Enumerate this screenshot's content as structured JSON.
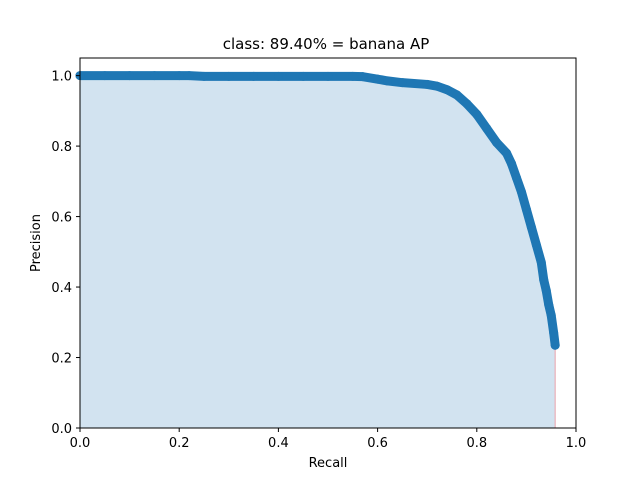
{
  "chart_data": {
    "type": "line",
    "title": "class: 89.40% = banana AP",
    "xlabel": "Recall",
    "ylabel": "Precision",
    "xlim": [
      0.0,
      1.0
    ],
    "ylim": [
      0.0,
      1.05
    ],
    "xticks": [
      "0.0",
      "0.2",
      "0.4",
      "0.6",
      "0.8",
      "1.0"
    ],
    "yticks": [
      "0.0",
      "0.2",
      "0.4",
      "0.6",
      "0.8",
      "1.0"
    ],
    "grid": false,
    "series": [
      {
        "color": "#1f77b4",
        "marker": "circle",
        "fill_under": true,
        "fill_color": "#d2e3f0",
        "x": [
          0.0,
          0.05,
          0.1,
          0.15,
          0.2,
          0.22,
          0.25,
          0.3,
          0.35,
          0.4,
          0.45,
          0.5,
          0.55,
          0.57,
          0.6,
          0.62,
          0.65,
          0.7,
          0.72,
          0.74,
          0.76,
          0.78,
          0.8,
          0.82,
          0.84,
          0.86,
          0.87,
          0.88,
          0.89,
          0.9,
          0.91,
          0.92,
          0.93,
          0.935,
          0.94,
          0.945,
          0.95,
          0.955,
          0.958
        ],
        "y": [
          1.0,
          1.0,
          1.0,
          1.0,
          1.0,
          1.0,
          0.998,
          0.998,
          0.998,
          0.998,
          0.998,
          0.998,
          0.998,
          0.997,
          0.99,
          0.985,
          0.98,
          0.975,
          0.97,
          0.96,
          0.945,
          0.92,
          0.89,
          0.85,
          0.81,
          0.78,
          0.75,
          0.71,
          0.67,
          0.62,
          0.57,
          0.52,
          0.47,
          0.42,
          0.39,
          0.35,
          0.32,
          0.27,
          0.235
        ]
      }
    ],
    "drop_line": {
      "x": 0.958,
      "color": "#e8b0b8"
    }
  }
}
